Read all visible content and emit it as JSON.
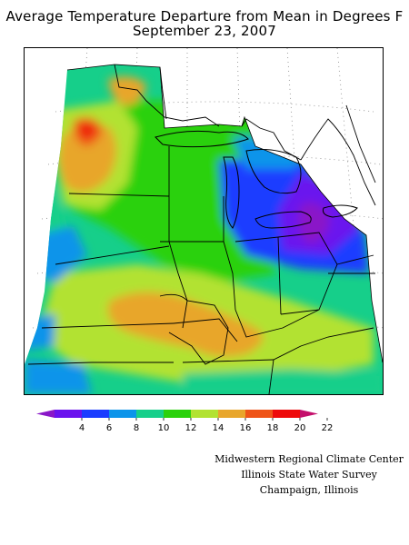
{
  "title": {
    "line1": "Average Temperature Departure from Mean in Degrees F",
    "line2": "September 23, 2007"
  },
  "legend": {
    "ticks": [
      "4",
      "6",
      "8",
      "10",
      "12",
      "14",
      "16",
      "18",
      "20",
      "22"
    ],
    "colors": [
      "#8a17c8",
      "#6a12ee",
      "#1a3cff",
      "#0c94ea",
      "#16cf8a",
      "#2bd10c",
      "#b2e232",
      "#e8a62c",
      "#ef5418",
      "#ee0a0a",
      "#c4106c"
    ]
  },
  "credits": {
    "line1": "Midwestern Regional Climate Center",
    "line2": "Illinois State Water Survey",
    "line3": "Champaign, Illinois"
  }
}
